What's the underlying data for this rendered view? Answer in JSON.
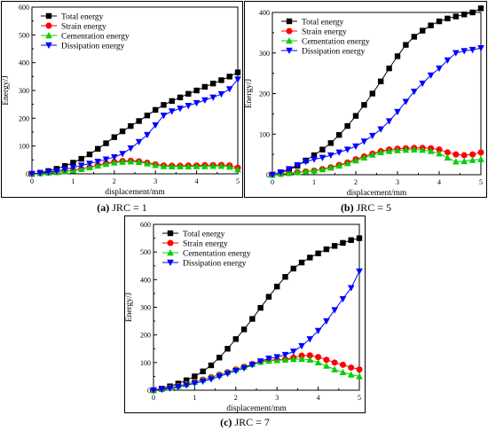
{
  "captions": [
    {
      "tag": "(a)",
      "text": "JRC = 1"
    },
    {
      "tag": "(b)",
      "text": "JRC = 5"
    },
    {
      "tag": "(c)",
      "text": "JRC = 7"
    }
  ],
  "series_colors": {
    "Total energy": "#000000",
    "Strain energy": "#ff0000",
    "Cementation energy": "#00d000",
    "Dissipation energy": "#0000ff"
  },
  "series_markers": {
    "Total energy": "square",
    "Strain energy": "circle",
    "Cementation energy": "triangle-up",
    "Dissipation energy": "triangle-down"
  },
  "chart_data": [
    {
      "type": "line",
      "xlabel": "displacement/mm",
      "ylabel": "Energy/J",
      "xlim": [
        0,
        5
      ],
      "ylim": [
        0,
        600
      ],
      "xticks": [
        0,
        1,
        2,
        3,
        4,
        5
      ],
      "yticks": [
        0,
        100,
        200,
        300,
        400,
        500,
        600
      ],
      "legend_position": "top-left",
      "x": [
        0,
        0.2,
        0.4,
        0.6,
        0.8,
        1.0,
        1.2,
        1.4,
        1.6,
        1.8,
        2.0,
        2.2,
        2.4,
        2.6,
        2.8,
        3.0,
        3.2,
        3.4,
        3.6,
        3.8,
        4.0,
        4.2,
        4.4,
        4.6,
        4.8,
        5.0
      ],
      "series": [
        {
          "name": "Total energy",
          "values": [
            0,
            4,
            10,
            18,
            28,
            40,
            54,
            70,
            90,
            110,
            132,
            153,
            172,
            190,
            210,
            230,
            248,
            262,
            275,
            288,
            300,
            313,
            325,
            337,
            350,
            365
          ]
        },
        {
          "name": "Strain energy",
          "values": [
            0,
            2,
            4,
            6,
            9,
            13,
            18,
            24,
            31,
            38,
            43,
            46,
            47,
            45,
            40,
            34,
            30,
            29,
            29,
            30,
            30,
            31,
            31,
            32,
            30,
            22
          ]
        },
        {
          "name": "Cementation energy",
          "values": [
            0,
            2,
            4,
            6,
            9,
            12,
            17,
            23,
            29,
            35,
            40,
            43,
            44,
            42,
            37,
            31,
            27,
            26,
            26,
            26,
            27,
            27,
            28,
            28,
            25,
            15
          ]
        },
        {
          "name": "Dissipation energy",
          "values": [
            0,
            3,
            6,
            10,
            16,
            23,
            30,
            37,
            44,
            52,
            60,
            72,
            92,
            115,
            140,
            175,
            210,
            225,
            235,
            245,
            255,
            265,
            275,
            287,
            305,
            340
          ]
        }
      ]
    },
    {
      "type": "line",
      "xlabel": "displacement/mm",
      "ylabel": "Energy/J",
      "xlim": [
        0,
        5
      ],
      "ylim": [
        0,
        400
      ],
      "xticks": [
        0,
        1,
        2,
        3,
        4,
        5
      ],
      "yticks": [
        0,
        100,
        200,
        300,
        400
      ],
      "legend_position": "top-left",
      "x": [
        0,
        0.2,
        0.4,
        0.6,
        0.8,
        1.0,
        1.2,
        1.4,
        1.6,
        1.8,
        2.0,
        2.2,
        2.4,
        2.6,
        2.8,
        3.0,
        3.2,
        3.4,
        3.6,
        3.8,
        4.0,
        4.2,
        4.4,
        4.6,
        4.8,
        5.0
      ],
      "series": [
        {
          "name": "Total energy",
          "values": [
            0,
            5,
            12,
            22,
            35,
            48,
            62,
            78,
            98,
            120,
            145,
            172,
            200,
            230,
            262,
            292,
            320,
            340,
            355,
            368,
            378,
            385,
            390,
            395,
            400,
            410
          ]
        },
        {
          "name": "Strain energy",
          "values": [
            0,
            2,
            4,
            6,
            8,
            10,
            14,
            18,
            24,
            30,
            38,
            45,
            52,
            58,
            62,
            64,
            65,
            66,
            66,
            65,
            62,
            55,
            50,
            48,
            50,
            55
          ]
        },
        {
          "name": "Cementation energy",
          "values": [
            0,
            2,
            4,
            6,
            8,
            10,
            13,
            17,
            22,
            28,
            35,
            42,
            49,
            55,
            58,
            60,
            61,
            62,
            61,
            58,
            52,
            42,
            32,
            33,
            36,
            38
          ]
        },
        {
          "name": "Dissipation energy",
          "values": [
            0,
            6,
            14,
            24,
            32,
            38,
            42,
            48,
            55,
            62,
            70,
            82,
            96,
            112,
            132,
            155,
            180,
            205,
            225,
            245,
            262,
            282,
            300,
            305,
            308,
            312
          ]
        }
      ]
    },
    {
      "type": "line",
      "xlabel": "displacement/mm",
      "ylabel": "Energy/J",
      "xlim": [
        0,
        5
      ],
      "ylim": [
        0,
        600
      ],
      "xticks": [
        0,
        1,
        2,
        3,
        4,
        5
      ],
      "yticks": [
        0,
        100,
        200,
        300,
        400,
        500,
        600
      ],
      "legend_position": "top-left",
      "x": [
        0,
        0.2,
        0.4,
        0.6,
        0.8,
        1.0,
        1.2,
        1.4,
        1.6,
        1.8,
        2.0,
        2.2,
        2.4,
        2.6,
        2.8,
        3.0,
        3.2,
        3.4,
        3.6,
        3.8,
        4.0,
        4.2,
        4.4,
        4.6,
        4.8,
        5.0
      ],
      "series": [
        {
          "name": "Total energy",
          "values": [
            0,
            6,
            14,
            24,
            36,
            50,
            68,
            90,
            118,
            150,
            185,
            220,
            258,
            298,
            338,
            375,
            410,
            440,
            462,
            480,
            495,
            510,
            522,
            533,
            543,
            550
          ]
        },
        {
          "name": "Strain energy",
          "values": [
            0,
            4,
            9,
            15,
            22,
            30,
            38,
            47,
            56,
            65,
            75,
            85,
            95,
            103,
            108,
            110,
            112,
            118,
            125,
            126,
            120,
            110,
            100,
            92,
            82,
            75
          ]
        },
        {
          "name": "Cementation energy",
          "values": [
            0,
            4,
            9,
            15,
            22,
            30,
            38,
            47,
            56,
            65,
            75,
            85,
            94,
            102,
            106,
            108,
            110,
            112,
            113,
            110,
            100,
            88,
            75,
            65,
            56,
            50
          ]
        },
        {
          "name": "Dissipation energy",
          "values": [
            0,
            3,
            7,
            12,
            18,
            25,
            32,
            40,
            50,
            60,
            70,
            80,
            92,
            105,
            115,
            120,
            128,
            140,
            160,
            185,
            215,
            250,
            290,
            330,
            370,
            430
          ]
        }
      ]
    }
  ]
}
